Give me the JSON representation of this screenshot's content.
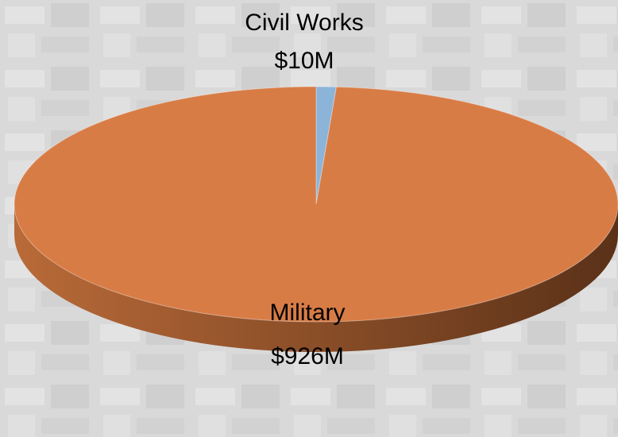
{
  "chart_data": {
    "type": "pie",
    "style": "3d",
    "slices": [
      {
        "label": "Civil Works",
        "value": 10,
        "value_label": "$10M",
        "color": "#8cb4d9"
      },
      {
        "label": "Military",
        "value": 926,
        "value_label": "$926M",
        "color": "#d87c46"
      }
    ],
    "legend": "none"
  }
}
